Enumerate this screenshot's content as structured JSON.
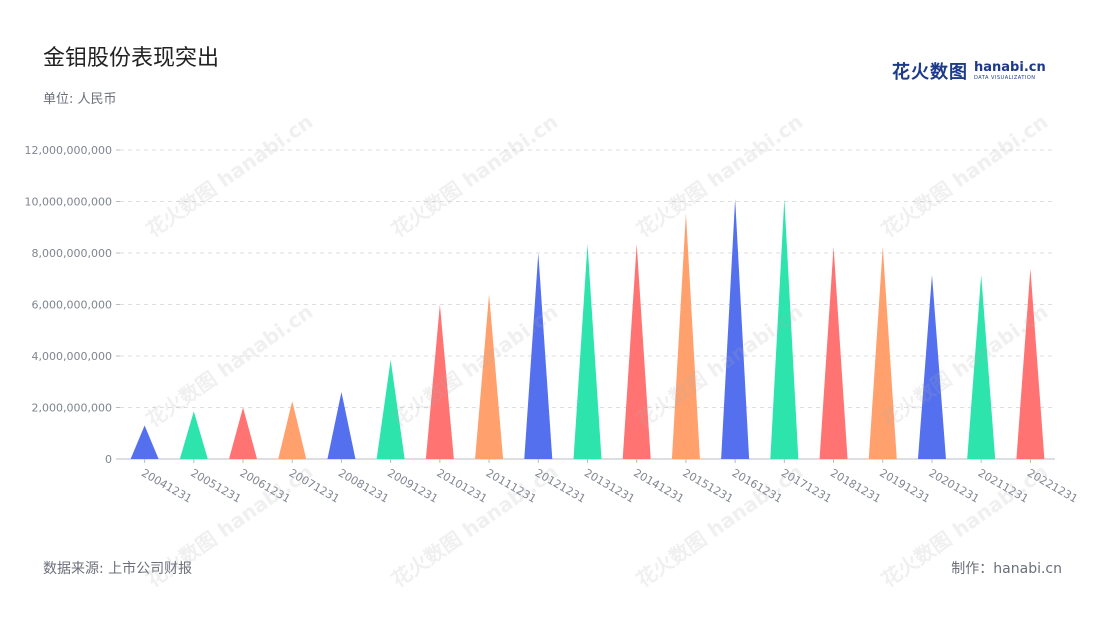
{
  "title": "金钼股份表现突出",
  "unit_label": "单位: 人民币",
  "brand": {
    "cn": "花火数图",
    "en": "hanabi.cn",
    "sub": "DATA VISUALIZATION"
  },
  "footer": {
    "source": "数据来源: 上市公司财报",
    "credit": "制作：hanabi.cn"
  },
  "watermark_text": "花火数图 hanabi.cn",
  "colors": [
    "#5470ee",
    "#2de4ad",
    "#ff7473",
    "#ffa06d"
  ],
  "chart_data": {
    "type": "bar",
    "bar_shape": "triangle",
    "categories": [
      "20041231",
      "20051231",
      "20061231",
      "20071231",
      "20081231",
      "20091231",
      "20101231",
      "20111231",
      "20121231",
      "20131231",
      "20141231",
      "20151231",
      "20161231",
      "20171231",
      "20181231",
      "20191231",
      "20201231",
      "20211231",
      "20221231"
    ],
    "values": [
      1300000000,
      1850000000,
      2000000000,
      2250000000,
      2600000000,
      3850000000,
      6000000000,
      6400000000,
      8000000000,
      8350000000,
      8350000000,
      9550000000,
      10100000000,
      10100000000,
      8250000000,
      8250000000,
      7150000000,
      7150000000,
      7400000000
    ],
    "ylim": [
      0,
      12000000000
    ],
    "yticks": [
      "0",
      "2,000,000,000",
      "4,000,000,000",
      "6,000,000,000",
      "8,000,000,000",
      "10,000,000,000",
      "12,000,000,000"
    ],
    "ytick_values": [
      0,
      2000000000,
      4000000000,
      6000000000,
      8000000000,
      10000000000,
      12000000000
    ],
    "grid": true,
    "color_cycle": [
      "#5470ee",
      "#2de4ad",
      "#ff7473",
      "#ffa06d"
    ]
  }
}
